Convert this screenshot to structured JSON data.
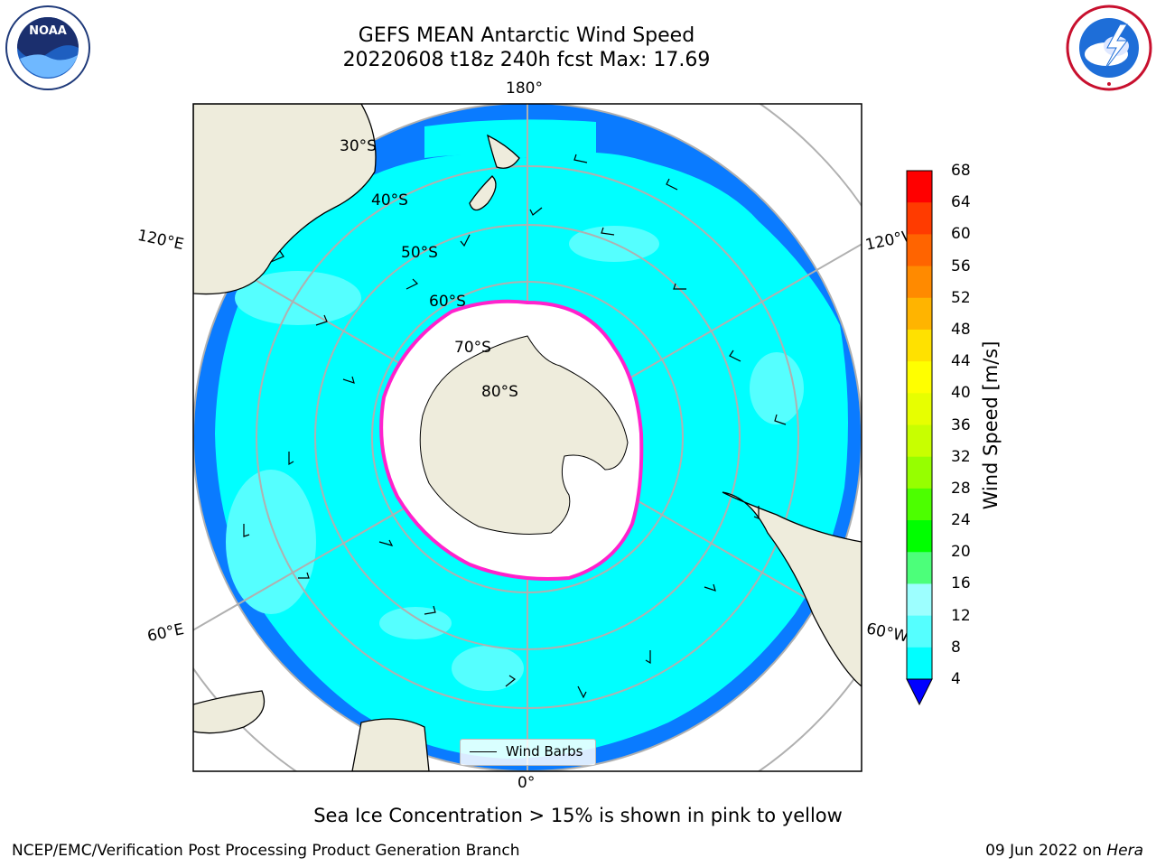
{
  "header": {
    "title_line1": "GEFS MEAN Antarctic Wind Speed",
    "title_line2": "20220608 t18z 240h fcst   Max: 17.69"
  },
  "logos": {
    "noaa": {
      "text": "NOAA",
      "ring_text": "NATIONAL OCEANIC AND ATMOSPHERIC ADMINISTRATION · U.S. DEPARTMENT OF COMMERCE",
      "icon": "noaa-logo-icon"
    },
    "nws": {
      "ring_text": "NATIONAL WEATHER SERVICE",
      "icon": "nws-logo-icon"
    }
  },
  "map": {
    "projection": "south-polar-stereographic",
    "longitude_labels": {
      "top": "180°",
      "bottom": "0°",
      "upper_left": "120°E",
      "upper_right": "120°W",
      "lower_left": "60°E",
      "lower_right": "60°W"
    },
    "latitude_labels": [
      "30°S",
      "40°S",
      "50°S",
      "60°S",
      "70°S",
      "80°S"
    ],
    "colors": {
      "land": "#eeecdc",
      "ocean_4_8": "#0a7bff",
      "ocean_8_12": "#00ffff",
      "ocean_12_16": "#55ffff",
      "sea_ice": "#ffffff",
      "ice_edge": "#ff22cc",
      "grid": "#b0b0b0"
    },
    "legend": {
      "label": "Wind Barbs",
      "icon": "wind-barb-line-icon"
    }
  },
  "colorbar": {
    "label": "Wind Speed [m/s]",
    "ticks": [
      "68",
      "64",
      "60",
      "56",
      "52",
      "48",
      "44",
      "40",
      "36",
      "32",
      "28",
      "24",
      "20",
      "16",
      "12",
      "8",
      "4"
    ],
    "colors": [
      "#ff0000",
      "#ff3b00",
      "#ff6400",
      "#ff8a00",
      "#ffb400",
      "#ffe100",
      "#ffff00",
      "#e7ff00",
      "#c8ff00",
      "#96ff00",
      "#4cff00",
      "#00ff00",
      "#4cff7a",
      "#9dffff",
      "#55ffff",
      "#00ffff",
      "#0a7bff"
    ],
    "extend_color": "#0000ff"
  },
  "caption": "Sea Ice Concentration > 15% is shown in pink to yellow",
  "footer": {
    "org": "NCEP/EMC/Verification Post Processing Product Generation Branch",
    "date": "09 Jun 2022 on ",
    "host": "Hera"
  }
}
